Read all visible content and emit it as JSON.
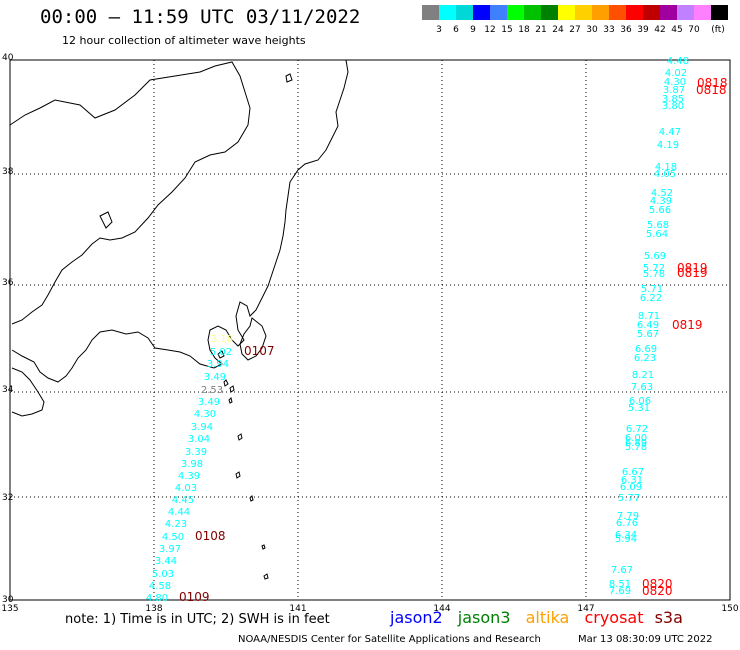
{
  "title": "00:00 – 11:59 UTC 03/11/2022",
  "subtitle": "12 hour collection of altimeter wave heights",
  "colorbar": {
    "labels": [
      "3",
      "6",
      "9",
      "12",
      "15",
      "18",
      "21",
      "24",
      "27",
      "30",
      "33",
      "36",
      "39",
      "42",
      "45",
      "70"
    ],
    "unit": "(ft)",
    "colors": [
      "#808080",
      "#00ffff",
      "#00d8d8",
      "#0000ff",
      "#4080ff",
      "#00ff00",
      "#00c000",
      "#008000",
      "#ffff00",
      "#ffd000",
      "#ffa000",
      "#ff5000",
      "#ff0000",
      "#c00000",
      "#a000a0",
      "#c080ff",
      "#ff80ff",
      "#000000"
    ]
  },
  "map": {
    "lat_labels": [
      "40",
      "38",
      "36",
      "34",
      "32",
      "30"
    ],
    "lon_labels": [
      "135",
      "138",
      "141",
      "144",
      "147",
      "150"
    ]
  },
  "tracks": {
    "jason3_west": {
      "color": "#00ffff",
      "values": [
        "5.02",
        "3.94",
        "3.49",
        "3.49",
        "4.30",
        "3.94",
        "3.04",
        "3.39",
        "3.98",
        "4.39",
        "4.03",
        "4.45",
        "4.44",
        "4.23",
        "4.50",
        "3.97",
        "3.44",
        "5.03",
        "4.58",
        "4.80"
      ]
    },
    "jason3_east": {
      "color": "#00ffff",
      "values": [
        "4.48",
        "4.02",
        "4.30",
        "3.87",
        "3.85",
        "3.80",
        "4.47",
        "4.19",
        "4.18",
        "4.05",
        "4.52",
        "4.39",
        "5.66",
        "5.68",
        "5.64",
        "5.69",
        "5.72",
        "5.78",
        "5.71",
        "6.22",
        "8.71",
        "6.49",
        "5.67",
        "6.69",
        "6.23",
        "8.21",
        "7.63",
        "6.06",
        "5.31",
        "6.72",
        "6.00",
        "6.89",
        "5.78",
        "6.67",
        "6.31",
        "6.09",
        "5.77",
        "7.79",
        "6.76",
        "6.34",
        "5.94",
        "7.67",
        "8.51",
        "7.69"
      ]
    },
    "altika_values": [
      "3.18"
    ],
    "gray_values": [
      "2.53"
    ]
  },
  "time_labels": {
    "west_dark": [
      "0107",
      "0108",
      "0109"
    ],
    "east_red": [
      "0818",
      "0818",
      "0819",
      "0819",
      "0819",
      "0820",
      "0820"
    ],
    "west_dark_color": "#800000",
    "east_red_color": "#ff0000"
  },
  "note": "note: 1) Time is in UTC; 2) SWH is in feet",
  "legend": [
    {
      "label": "jason2",
      "color": "#0000ff"
    },
    {
      "label": "jason3",
      "color": "#008000"
    },
    {
      "label": "altika",
      "color": "#ffa000"
    },
    {
      "label": "cryosat",
      "color": "#ff0000"
    },
    {
      "label": "s3a",
      "color": "#800000"
    }
  ],
  "footer": "NOAA/NESDIS Center for Satellite Applications and Research",
  "footer_date": "Mar 13 08:30:09 UTC 2022"
}
